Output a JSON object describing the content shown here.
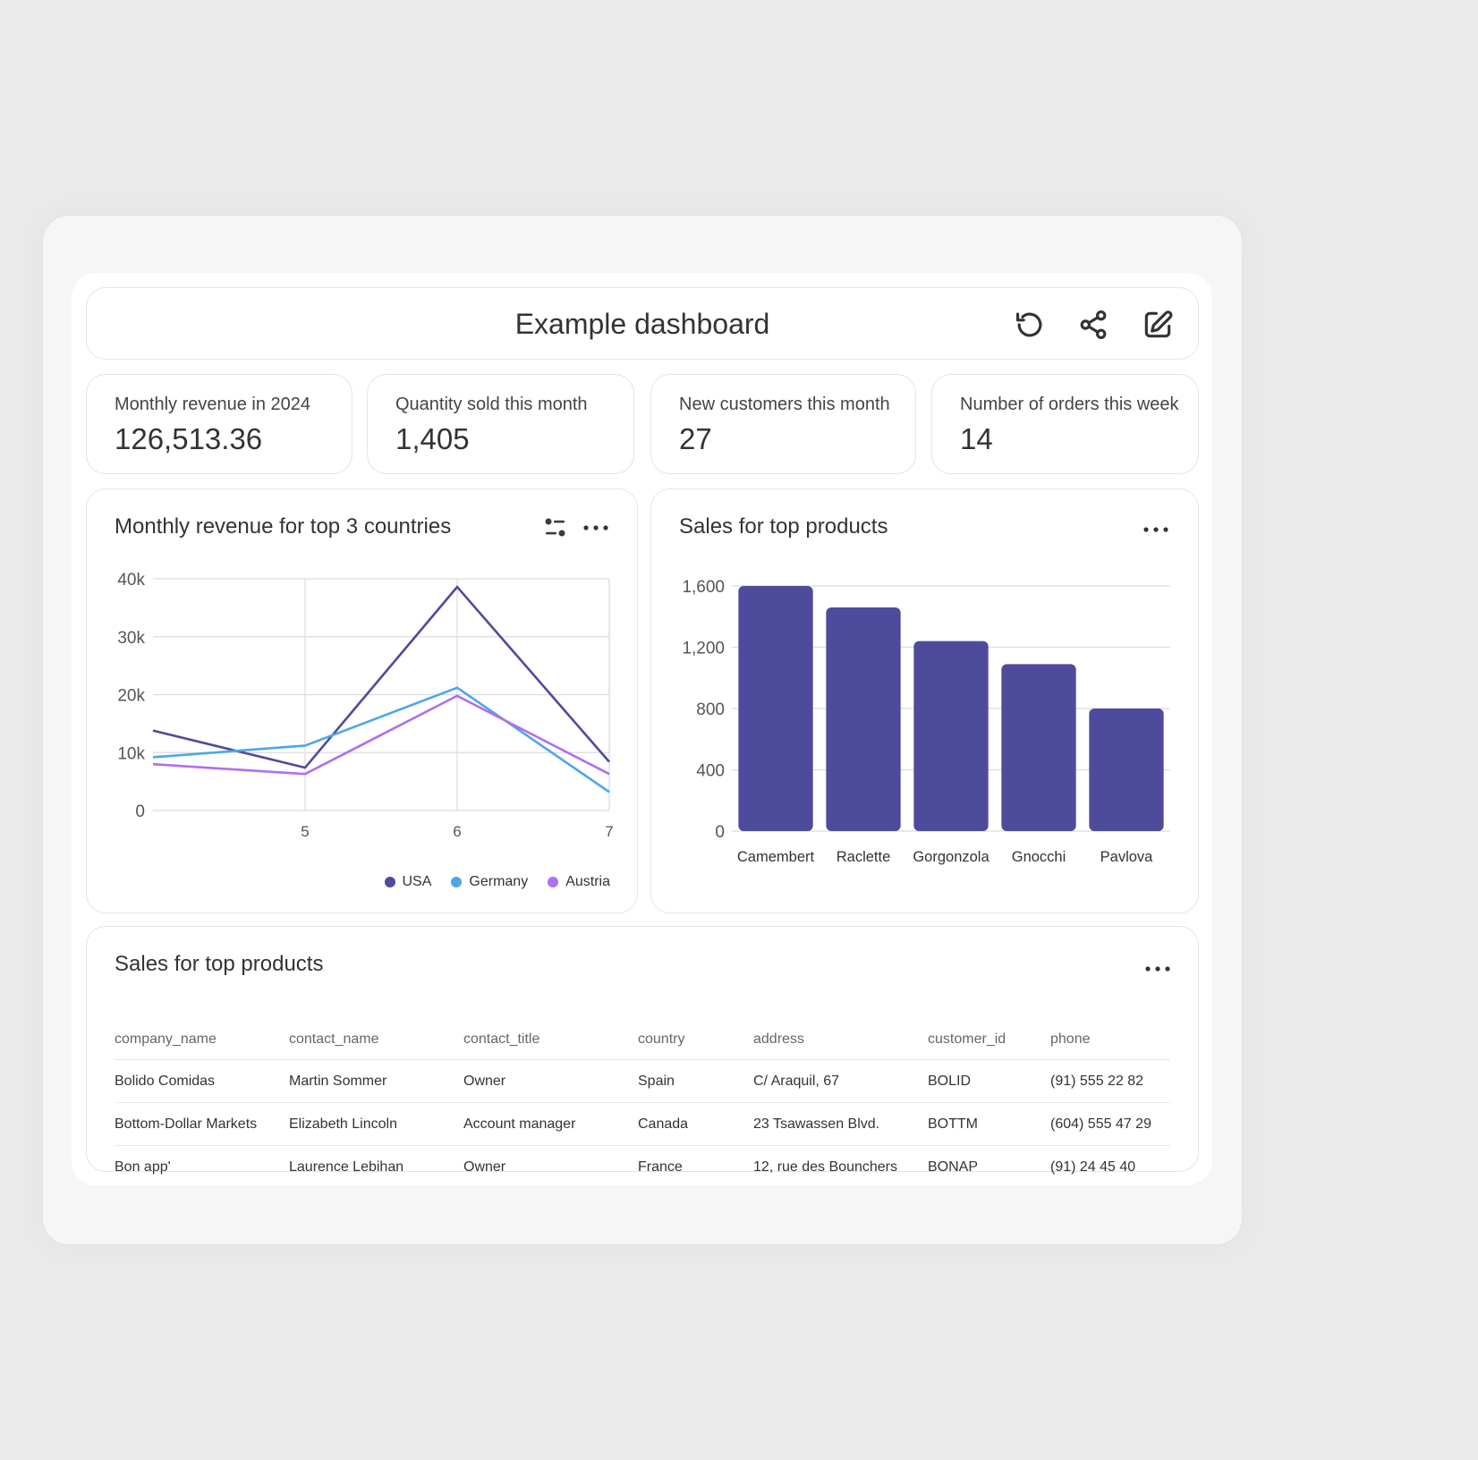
{
  "header": {
    "title": "Example dashboard",
    "icons": [
      "refresh-icon",
      "share-icon",
      "edit-icon"
    ]
  },
  "kpis": [
    {
      "label": "Monthly revenue in 2024",
      "value": "126,513.36"
    },
    {
      "label": "Quantity sold this month",
      "value": "1,405"
    },
    {
      "label": "New customers this month",
      "value": "27"
    },
    {
      "label": "Number of orders this week",
      "value": "14"
    }
  ],
  "line_panel": {
    "title": "Monthly revenue for top 3 countries"
  },
  "bar_panel": {
    "title": "Sales for top products"
  },
  "table_panel": {
    "title": "Sales for top products",
    "columns": [
      "company_name",
      "contact_name",
      "contact_title",
      "country",
      "address",
      "customer_id",
      "phone"
    ],
    "rows": [
      [
        "Bolido Comidas",
        "Martin Sommer",
        "Owner",
        "Spain",
        "C/ Araquil, 67",
        "BOLID",
        "(91) 555 22 82"
      ],
      [
        "Bottom-Dollar Markets",
        "Elizabeth Lincoln",
        "Account manager",
        "Canada",
        "23 Tsawassen Blvd.",
        "BOTTM",
        "(604) 555 47 29"
      ],
      [
        "Bon app'",
        "Laurence Lebihan",
        "Owner",
        "France",
        "12, rue des Bounchers",
        "BONAP",
        "(91) 24 45 40"
      ]
    ]
  },
  "chart_data": [
    {
      "type": "line",
      "title": "Monthly revenue for top 3 countries",
      "x": [
        4,
        5,
        6,
        7
      ],
      "x_ticks": [
        "5",
        "6",
        "7"
      ],
      "xlim": [
        4,
        7
      ],
      "y_ticks": [
        "0",
        "10k",
        "20k",
        "30k",
        "40k"
      ],
      "ylim": [
        0,
        40000
      ],
      "grid": true,
      "legend": "bottom-right",
      "series": [
        {
          "name": "USA",
          "color": "#4e4a9c",
          "values": [
            13800,
            7400,
            38600,
            8400
          ]
        },
        {
          "name": "Germany",
          "color": "#4da6e6",
          "values": [
            9200,
            11200,
            21200,
            3200
          ]
        },
        {
          "name": "Austria",
          "color": "#b06ef0",
          "values": [
            8000,
            6300,
            19800,
            6300
          ]
        }
      ]
    },
    {
      "type": "bar",
      "title": "Sales for top products",
      "categories": [
        "Camembert",
        "Raclette",
        "Gorgonzola",
        "Gnocchi",
        "Pavlova"
      ],
      "values": [
        1600,
        1460,
        1240,
        1090,
        800
      ],
      "y_ticks": [
        "0",
        "400",
        "800",
        "1,200",
        "1,600"
      ],
      "ylim": [
        0,
        1600
      ],
      "grid": true,
      "color": "#4e4a9c"
    }
  ]
}
